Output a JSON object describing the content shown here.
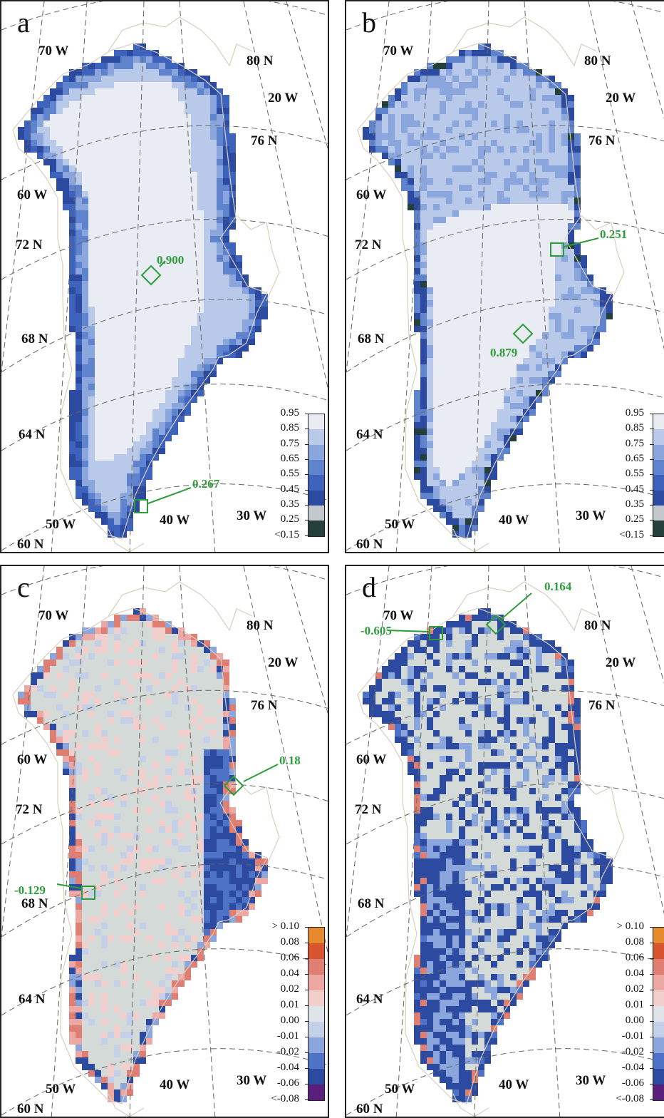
{
  "colors": {
    "coast": "#d8cfbf",
    "grid": "#666666",
    "annotation": "#2e9c3a",
    "ramp_albedo": [
      "#25403a",
      "#c3c8cc",
      "#2b4aa0",
      "#3d63bd",
      "#5f83cc",
      "#8aa6dc",
      "#b9c9e9",
      "#e9ecf3"
    ],
    "ramp_diff": [
      "#5a1f7a",
      "#2b4aa0",
      "#4e72c6",
      "#8aa6dc",
      "#c3d0e8",
      "#dfe3ea",
      "#f2cfcd",
      "#eda8a3",
      "#df7f74",
      "#d8542f",
      "#e68a2e"
    ]
  },
  "panels": [
    {
      "id": "a",
      "letter": "a",
      "type": "albedo",
      "labels": {
        "lon70": "70 W",
        "lat80": "80 N",
        "lon20": "20 W",
        "lat76": "76 N",
        "lon60": "60 W",
        "lat72": "72 N",
        "lat68": "68 N",
        "lat64": "64 N",
        "lon50": "50 W",
        "lon40": "40 W",
        "lon30": "30 W",
        "lat60": "60 N"
      },
      "annotations": [
        {
          "text": "0.900"
        },
        {
          "text": "0.267"
        }
      ],
      "legend": [
        "0.95",
        "0.85",
        "0.75",
        "0.65",
        "0.55",
        "0.45",
        "0.35",
        "0.25",
        "<0.15"
      ]
    },
    {
      "id": "b",
      "letter": "b",
      "type": "albedo2",
      "labels": {
        "lon70": "70 W",
        "lat80": "80 N",
        "lon20": "20 W",
        "lat76": "76 N",
        "lon60": "60 W",
        "lat72": "72 N",
        "lat68": "68 N",
        "lat64": "64 N",
        "lon50": "50 W",
        "lon40": "40 W",
        "lon30": "30 W",
        "lat60": "60 N"
      },
      "annotations": [
        {
          "text": "0.251"
        },
        {
          "text": "0.879"
        }
      ],
      "legend": [
        "0.95",
        "0.85",
        "0.75",
        "0.65",
        "0.55",
        "0.45",
        "0.35",
        "0.25",
        "<0.15"
      ]
    },
    {
      "id": "c",
      "letter": "c",
      "type": "diff",
      "labels": {
        "lon70": "70 W",
        "lat80": "80 N",
        "lon20": "20 W",
        "lat76": "76 N",
        "lon60": "60 W",
        "lat72": "72 N",
        "lat68": "68 N",
        "lat64": "64 N",
        "lon50": "50 W",
        "lon40": "40 W",
        "lon30": "30 W",
        "lat60": "60 N"
      },
      "annotations": [
        {
          "text": "0.18"
        },
        {
          "text": "-0.129"
        }
      ],
      "legend": [
        "> 0.10",
        "0.08",
        "0.06",
        "0.04",
        "0.02",
        "0.01",
        "0.00",
        "-0.01",
        "-0.02",
        "-0.04",
        "-0.06",
        "<-0.08"
      ]
    },
    {
      "id": "d",
      "letter": "d",
      "type": "diff2",
      "labels": {
        "lon70": "70 W",
        "lat80": "80 N",
        "lon20": "20 W",
        "lat76": "76 N",
        "lon60": "60 W",
        "lat72": "72 N",
        "lat68": "68 N",
        "lat64": "64 N",
        "lon50": "50 W",
        "lon40": "40 W",
        "lon30": "30 W",
        "lat60": "60 N"
      },
      "annotations": [
        {
          "text": "0.164"
        },
        {
          "text": "-0.605"
        }
      ],
      "legend": [
        "> 0.10",
        "0.08",
        "0.06",
        "0.04",
        "0.02",
        "0.01",
        "0.00",
        "-0.01",
        "-0.02",
        "-0.04",
        "-0.06",
        "<-0.08"
      ]
    }
  ]
}
